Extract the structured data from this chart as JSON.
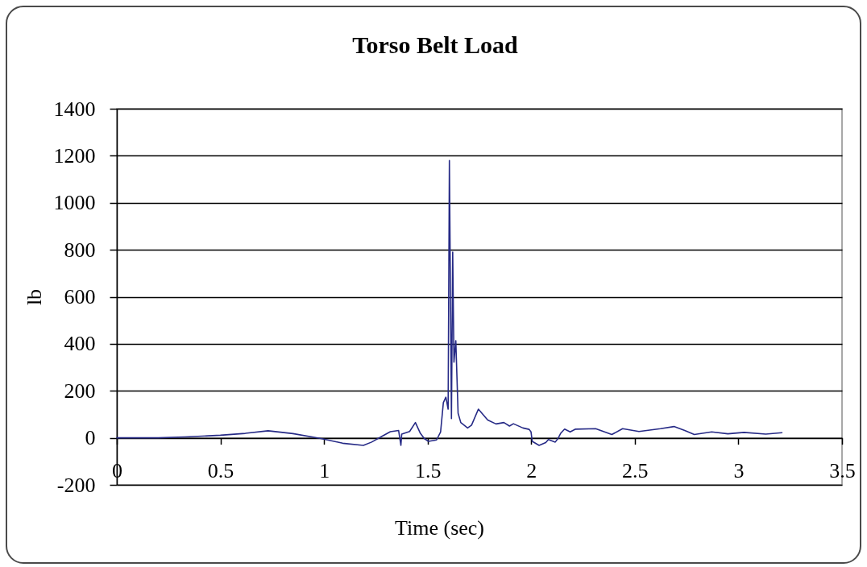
{
  "chart_data": {
    "type": "line",
    "title": "Torso Belt Load",
    "xlabel": "Time (sec)",
    "ylabel": "lb",
    "x": [
      0,
      0.2,
      0.33,
      0.5,
      0.62,
      0.73,
      0.85,
      0.98,
      1.09,
      1.19,
      1.23,
      1.283,
      1.32,
      1.36,
      1.371,
      1.375,
      1.413,
      1.441,
      1.465,
      1.484,
      1.504,
      1.543,
      1.5625,
      1.576,
      1.588,
      1.599,
      1.605,
      1.615,
      1.621,
      1.627,
      1.636,
      1.647,
      1.66,
      1.693,
      1.712,
      1.745,
      1.79,
      1.83,
      1.868,
      1.895,
      1.914,
      1.96,
      1.99,
      1.999,
      2.005,
      2.038,
      2.07,
      2.083,
      2.116,
      2.129,
      2.142,
      2.161,
      2.188,
      2.214,
      2.311,
      2.389,
      2.441,
      2.52,
      2.624,
      2.689,
      2.741,
      2.787,
      2.871,
      2.949,
      3.027,
      3.132,
      3.21
    ],
    "series": [
      {
        "color": "#262a86",
        "values": [
          0,
          0,
          4,
          11,
          19,
          30,
          18,
          -2,
          -23,
          -32,
          -18,
          8,
          26,
          31,
          -32,
          16,
          27,
          65,
          19,
          -3,
          -15,
          -9,
          25,
          150,
          173,
          122,
          1180,
          82,
          790,
          322,
          413,
          105,
          65,
          42,
          54,
          122,
          76,
          59,
          65,
          50,
          60,
          42,
          36,
          25,
          -15,
          -32,
          -20,
          -7,
          -18,
          -3,
          19,
          37,
          25,
          37,
          39,
          14,
          39,
          27,
          39,
          48,
          31,
          14,
          25,
          17,
          23,
          16,
          22
        ]
      }
    ],
    "xlim": [
      0,
      3.5
    ],
    "xticks": [
      0,
      0.5,
      1,
      1.5,
      2,
      2.5,
      3,
      3.5
    ],
    "ylim": [
      -200,
      1400
    ],
    "yticks": [
      -200,
      0,
      200,
      400,
      600,
      800,
      1000,
      1200,
      1400
    ],
    "grid": "y",
    "line_style": "solid"
  }
}
